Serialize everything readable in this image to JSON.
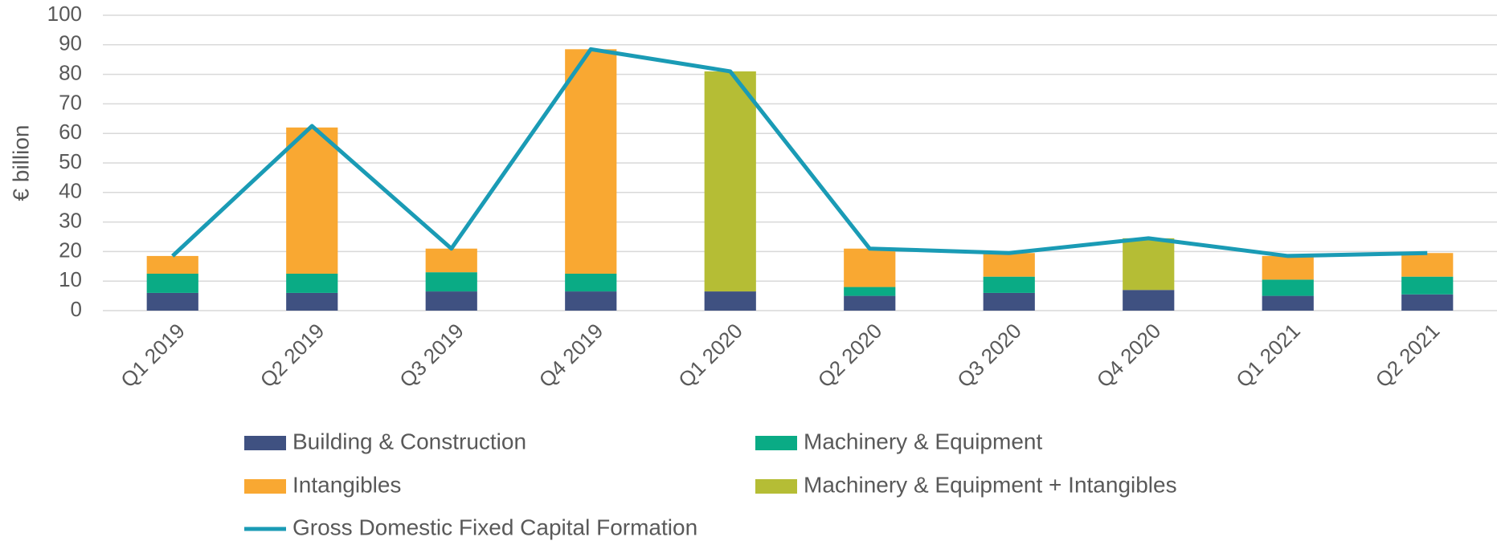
{
  "chart_data": {
    "type": "bar",
    "stacked": true,
    "ylabel": "€ billion",
    "categories": [
      "Q1 2019",
      "Q2 2019",
      "Q3 2019",
      "Q4 2019",
      "Q1 2020",
      "Q2 2020",
      "Q3 2020",
      "Q4 2020",
      "Q1 2021",
      "Q2 2021"
    ],
    "series": [
      {
        "name": "Building & Construction",
        "color": "#3f5181",
        "values": [
          6,
          6,
          6.5,
          6.5,
          6.5,
          5,
          6,
          7,
          5,
          5.5
        ]
      },
      {
        "name": "Machinery & Equipment",
        "color": "#0aab85",
        "values": [
          6.5,
          6.5,
          6.5,
          6,
          null,
          3,
          5.5,
          null,
          5.5,
          6
        ]
      },
      {
        "name": "Intangibles",
        "color": "#f9a832",
        "values": [
          6,
          49.5,
          8,
          76,
          null,
          13,
          8,
          null,
          8,
          8
        ]
      },
      {
        "name": "Machinery & Equipment + Intangibles",
        "color": "#b5bd35",
        "values": [
          null,
          null,
          null,
          null,
          74.5,
          null,
          null,
          17.5,
          null,
          null
        ]
      },
      {
        "name": "Gross Domestic Fixed Capital Formation",
        "color": "#1a9bb5",
        "type": "line",
        "values": [
          18.5,
          62.5,
          21,
          88.5,
          81,
          21,
          19.5,
          24.5,
          18.5,
          19.5
        ]
      }
    ],
    "ylim": [
      0,
      100
    ],
    "yticks": [
      0,
      10,
      20,
      30,
      40,
      50,
      60,
      70,
      80,
      90,
      100
    ],
    "grid": true
  }
}
